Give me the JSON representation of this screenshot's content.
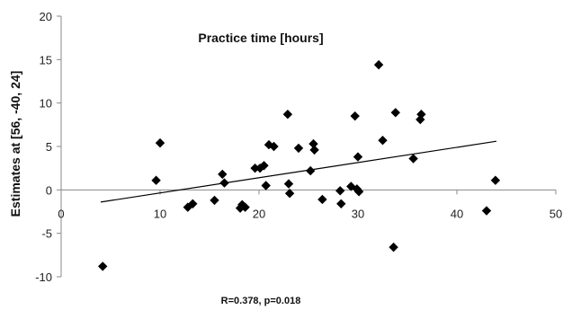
{
  "chart_data": {
    "type": "scatter",
    "title": "Practice time [hours]",
    "ylabel": "Estimates at [56, -40, 24]",
    "footnote": "R=0.378, p=0.018",
    "xlim": [
      0,
      50
    ],
    "ylim": [
      -10,
      20
    ],
    "xticks": [
      0,
      10,
      20,
      30,
      40,
      50
    ],
    "yticks": [
      -10,
      -5,
      0,
      5,
      10,
      15,
      20
    ],
    "grid": false,
    "legend": false,
    "marker_color": "#000000",
    "trendline": {
      "x": [
        4,
        44
      ],
      "y": [
        -1.4,
        5.6
      ]
    },
    "points": [
      {
        "x": 4.2,
        "y": -8.8
      },
      {
        "x": 9.6,
        "y": 1.1
      },
      {
        "x": 10.0,
        "y": 5.4
      },
      {
        "x": 12.8,
        "y": -2.0
      },
      {
        "x": 13.3,
        "y": -1.6
      },
      {
        "x": 15.5,
        "y": -1.2
      },
      {
        "x": 16.3,
        "y": 1.8
      },
      {
        "x": 16.5,
        "y": 0.8
      },
      {
        "x": 18.1,
        "y": -2.1
      },
      {
        "x": 18.3,
        "y": -1.7
      },
      {
        "x": 18.6,
        "y": -2.0
      },
      {
        "x": 19.6,
        "y": 2.5
      },
      {
        "x": 20.1,
        "y": 2.5
      },
      {
        "x": 20.5,
        "y": 2.8
      },
      {
        "x": 20.7,
        "y": 0.5
      },
      {
        "x": 21.0,
        "y": 5.2
      },
      {
        "x": 21.5,
        "y": 5.0
      },
      {
        "x": 22.9,
        "y": 8.7
      },
      {
        "x": 23.0,
        "y": 0.7
      },
      {
        "x": 23.1,
        "y": -0.4
      },
      {
        "x": 24.0,
        "y": 4.8
      },
      {
        "x": 25.2,
        "y": 2.2
      },
      {
        "x": 25.5,
        "y": 5.3
      },
      {
        "x": 25.6,
        "y": 4.6
      },
      {
        "x": 26.4,
        "y": -1.1
      },
      {
        "x": 28.2,
        "y": -0.1
      },
      {
        "x": 28.3,
        "y": -1.6
      },
      {
        "x": 29.3,
        "y": 0.4
      },
      {
        "x": 29.7,
        "y": 8.5
      },
      {
        "x": 29.9,
        "y": 0.1
      },
      {
        "x": 30.0,
        "y": 3.8
      },
      {
        "x": 30.1,
        "y": -0.2
      },
      {
        "x": 32.1,
        "y": 14.4
      },
      {
        "x": 32.5,
        "y": 5.7
      },
      {
        "x": 33.6,
        "y": -6.6
      },
      {
        "x": 33.8,
        "y": 8.9
      },
      {
        "x": 35.6,
        "y": 3.6
      },
      {
        "x": 36.3,
        "y": 8.1
      },
      {
        "x": 36.4,
        "y": 8.7
      },
      {
        "x": 43.0,
        "y": -2.4
      },
      {
        "x": 43.9,
        "y": 1.1
      }
    ]
  }
}
